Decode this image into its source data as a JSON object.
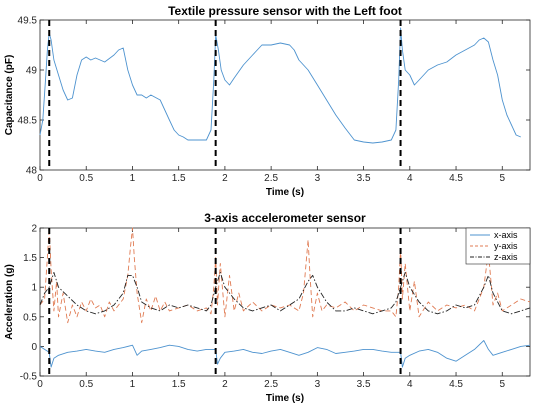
{
  "chart_data": [
    {
      "type": "line",
      "title": "Textile pressure sensor with the Left foot",
      "xlabel": "Time (s)",
      "ylabel": "Capacitance (pF)",
      "xlim": [
        0,
        5.3
      ],
      "ylim": [
        48,
        49.5
      ],
      "xticks": [
        0,
        0.5,
        1,
        1.5,
        2,
        2.5,
        3,
        3.5,
        4,
        4.5,
        5
      ],
      "xtick_labels": [
        "0",
        "0.5",
        "1",
        "1.5",
        "2",
        "2.5",
        "3",
        "3.5",
        "4",
        "4.5",
        "5"
      ],
      "yticks": [
        48,
        48.5,
        49,
        49.5
      ],
      "ytick_labels": [
        "48",
        "48.5",
        "49",
        "49.5"
      ],
      "step_markers": [
        0.1,
        1.9,
        3.9
      ],
      "grid": false,
      "series": [
        {
          "color": "#4e93cf",
          "style": "solid",
          "x": [
            0,
            0.03,
            0.06,
            0.08,
            0.1,
            0.12,
            0.15,
            0.2,
            0.25,
            0.3,
            0.35,
            0.4,
            0.45,
            0.5,
            0.55,
            0.6,
            0.7,
            0.8,
            0.85,
            0.9,
            0.95,
            1.0,
            1.05,
            1.1,
            1.15,
            1.2,
            1.3,
            1.4,
            1.45,
            1.5,
            1.55,
            1.6,
            1.7,
            1.8,
            1.85,
            1.88,
            1.9,
            1.93,
            1.96,
            2.0,
            2.05,
            2.1,
            2.2,
            2.3,
            2.4,
            2.5,
            2.6,
            2.7,
            2.75,
            2.8,
            2.9,
            3.0,
            3.1,
            3.2,
            3.3,
            3.4,
            3.5,
            3.6,
            3.7,
            3.8,
            3.85,
            3.88,
            3.9,
            3.92,
            3.95,
            4.0,
            4.05,
            4.1,
            4.15,
            4.2,
            4.3,
            4.4,
            4.5,
            4.6,
            4.7,
            4.75,
            4.8,
            4.85,
            4.9,
            4.95,
            5.0,
            5.05,
            5.1,
            5.15,
            5.2
          ],
          "y": [
            48.35,
            48.5,
            48.9,
            49.2,
            49.37,
            49.3,
            49.1,
            48.95,
            48.8,
            48.7,
            48.72,
            48.95,
            49.1,
            49.13,
            49.1,
            49.12,
            49.08,
            49.15,
            49.2,
            49.22,
            49.0,
            48.85,
            48.75,
            48.75,
            48.72,
            48.75,
            48.7,
            48.5,
            48.4,
            48.35,
            48.33,
            48.3,
            48.3,
            48.3,
            48.4,
            48.9,
            49.35,
            49.2,
            49.0,
            48.9,
            48.85,
            48.92,
            49.05,
            49.15,
            49.25,
            49.25,
            49.27,
            49.25,
            49.2,
            49.1,
            49.0,
            48.85,
            48.7,
            48.55,
            48.42,
            48.3,
            48.28,
            48.27,
            48.28,
            48.3,
            48.4,
            48.9,
            49.42,
            49.2,
            49.0,
            48.95,
            48.85,
            48.9,
            48.95,
            49.0,
            49.05,
            49.08,
            49.15,
            49.2,
            49.25,
            49.3,
            49.32,
            49.28,
            49.1,
            48.95,
            48.7,
            48.55,
            48.45,
            48.35,
            48.33
          ]
        }
      ]
    },
    {
      "type": "line",
      "title": "3-axis accelerometer sensor",
      "xlabel": "Time (s)",
      "ylabel": "Acceleration (g)",
      "xlim": [
        0,
        5.3
      ],
      "ylim": [
        -0.5,
        2
      ],
      "xticks": [
        0,
        0.5,
        1,
        1.5,
        2,
        2.5,
        3,
        3.5,
        4,
        4.5,
        5
      ],
      "xtick_labels": [
        "0",
        "0.5",
        "1",
        "1.5",
        "2",
        "2.5",
        "3",
        "3.5",
        "4",
        "4.5",
        "5"
      ],
      "yticks": [
        -0.5,
        0,
        0.5,
        1,
        1.5,
        2
      ],
      "ytick_labels": [
        "-0.5",
        "0",
        "0.5",
        "1",
        "1.5",
        "2"
      ],
      "step_markers": [
        0.1,
        1.9,
        3.9
      ],
      "grid": false,
      "legend": {
        "position": "top-right",
        "entries": [
          "x-axis",
          "y-axis",
          "z-axis"
        ]
      },
      "series": [
        {
          "name": "x-axis",
          "color": "#4e93cf",
          "style": "solid",
          "x": [
            0,
            0.05,
            0.1,
            0.12,
            0.15,
            0.2,
            0.3,
            0.4,
            0.5,
            0.6,
            0.7,
            0.8,
            0.9,
            1.0,
            1.05,
            1.1,
            1.2,
            1.3,
            1.4,
            1.5,
            1.6,
            1.7,
            1.8,
            1.9,
            1.92,
            1.95,
            2.0,
            2.1,
            2.2,
            2.3,
            2.4,
            2.5,
            2.6,
            2.7,
            2.8,
            2.9,
            3.0,
            3.1,
            3.2,
            3.3,
            3.4,
            3.5,
            3.6,
            3.7,
            3.8,
            3.9,
            3.92,
            3.95,
            4.0,
            4.1,
            4.2,
            4.3,
            4.4,
            4.5,
            4.6,
            4.7,
            4.8,
            4.85,
            4.9,
            5.0,
            5.1,
            5.2,
            5.3
          ],
          "y": [
            0.0,
            -0.05,
            -0.1,
            -0.35,
            -0.2,
            -0.15,
            -0.1,
            -0.08,
            -0.05,
            -0.08,
            -0.1,
            -0.05,
            -0.02,
            0.02,
            -0.15,
            -0.08,
            -0.05,
            -0.02,
            0.02,
            0.0,
            -0.05,
            -0.08,
            -0.05,
            -0.05,
            -0.3,
            -0.2,
            -0.1,
            -0.08,
            -0.05,
            -0.1,
            -0.12,
            -0.08,
            -0.05,
            -0.1,
            -0.15,
            -0.1,
            -0.02,
            -0.05,
            -0.12,
            -0.1,
            -0.08,
            -0.05,
            -0.05,
            -0.08,
            -0.1,
            -0.1,
            -0.35,
            -0.2,
            -0.15,
            -0.08,
            -0.05,
            -0.1,
            -0.2,
            -0.25,
            -0.15,
            -0.05,
            0.1,
            -0.05,
            -0.15,
            -0.1,
            -0.05,
            0.0,
            0.02
          ]
        },
        {
          "name": "y-axis",
          "color": "#e07b53",
          "style": "dashed",
          "x": [
            0,
            0.05,
            0.08,
            0.1,
            0.12,
            0.15,
            0.18,
            0.2,
            0.25,
            0.3,
            0.35,
            0.4,
            0.45,
            0.5,
            0.55,
            0.6,
            0.65,
            0.7,
            0.75,
            0.8,
            0.85,
            0.9,
            0.95,
            0.98,
            1.0,
            1.02,
            1.05,
            1.1,
            1.15,
            1.2,
            1.25,
            1.3,
            1.35,
            1.4,
            1.5,
            1.6,
            1.7,
            1.8,
            1.85,
            1.88,
            1.9,
            1.92,
            1.95,
            2.0,
            2.05,
            2.1,
            2.15,
            2.2,
            2.3,
            2.4,
            2.5,
            2.6,
            2.7,
            2.8,
            2.85,
            2.9,
            2.92,
            2.95,
            3.0,
            3.05,
            3.1,
            3.2,
            3.3,
            3.4,
            3.5,
            3.6,
            3.7,
            3.8,
            3.85,
            3.88,
            3.9,
            3.92,
            3.95,
            4.0,
            4.05,
            4.1,
            4.2,
            4.3,
            4.4,
            4.5,
            4.6,
            4.7,
            4.75,
            4.8,
            4.85,
            4.9,
            4.95,
            5.0,
            5.1,
            5.2,
            5.3
          ],
          "y": [
            0.7,
            0.8,
            1.5,
            2.0,
            1.3,
            0.6,
            1.1,
            0.5,
            0.9,
            0.4,
            0.7,
            0.5,
            0.75,
            0.6,
            0.8,
            0.65,
            0.7,
            0.5,
            0.75,
            0.6,
            0.7,
            0.8,
            1.2,
            1.7,
            2.0,
            1.5,
            0.9,
            0.4,
            0.8,
            0.6,
            0.85,
            0.6,
            0.75,
            0.6,
            0.65,
            0.7,
            0.6,
            0.65,
            0.55,
            1.0,
            1.5,
            0.7,
            1.4,
            0.5,
            1.2,
            0.6,
            0.9,
            0.6,
            0.75,
            0.6,
            0.7,
            0.65,
            0.7,
            0.6,
            0.9,
            1.8,
            1.2,
            0.5,
            0.9,
            0.6,
            0.7,
            0.65,
            0.75,
            0.6,
            0.7,
            0.65,
            0.6,
            0.6,
            0.5,
            1.0,
            1.65,
            0.8,
            1.4,
            0.6,
            1.1,
            0.5,
            0.75,
            0.6,
            0.7,
            0.65,
            0.7,
            0.6,
            0.8,
            1.0,
            1.6,
            0.7,
            0.9,
            0.6,
            0.7,
            0.8,
            0.75
          ]
        },
        {
          "name": "z-axis",
          "color": "#222222",
          "style": "dashdot",
          "x": [
            0,
            0.05,
            0.1,
            0.15,
            0.2,
            0.3,
            0.4,
            0.5,
            0.6,
            0.7,
            0.8,
            0.9,
            0.95,
            1.0,
            1.05,
            1.1,
            1.2,
            1.3,
            1.4,
            1.5,
            1.6,
            1.7,
            1.8,
            1.85,
            1.9,
            1.95,
            2.0,
            2.1,
            2.2,
            2.3,
            2.4,
            2.5,
            2.6,
            2.7,
            2.8,
            2.9,
            2.95,
            3.0,
            3.1,
            3.2,
            3.3,
            3.4,
            3.5,
            3.6,
            3.7,
            3.8,
            3.85,
            3.9,
            3.95,
            4.0,
            4.1,
            4.2,
            4.3,
            4.4,
            4.5,
            4.6,
            4.7,
            4.8,
            4.85,
            4.9,
            5.0,
            5.1,
            5.2,
            5.3
          ],
          "y": [
            0.7,
            0.9,
            1.0,
            1.25,
            1.0,
            0.85,
            0.7,
            0.6,
            0.55,
            0.6,
            0.7,
            0.9,
            1.2,
            1.2,
            1.0,
            0.75,
            0.65,
            0.6,
            0.7,
            0.65,
            0.7,
            0.65,
            0.6,
            0.7,
            1.0,
            1.25,
            1.0,
            0.8,
            0.65,
            0.6,
            0.65,
            0.7,
            0.6,
            0.7,
            0.8,
            1.1,
            1.2,
            1.0,
            0.75,
            0.6,
            0.6,
            0.65,
            0.6,
            0.55,
            0.6,
            0.65,
            0.75,
            1.0,
            1.25,
            1.0,
            0.75,
            0.6,
            0.55,
            0.6,
            0.7,
            0.65,
            0.7,
            1.0,
            1.2,
            0.9,
            0.6,
            0.55,
            0.6,
            0.65
          ]
        }
      ]
    }
  ]
}
